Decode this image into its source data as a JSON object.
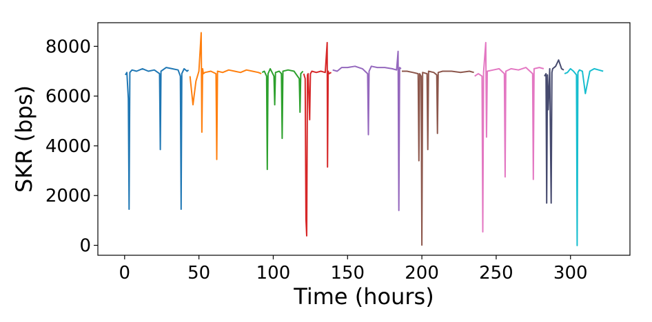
{
  "chart_data": {
    "type": "line",
    "title": "",
    "xlabel": "Time (hours)",
    "ylabel": "SKR (bps)",
    "xlim": [
      -18,
      340
    ],
    "ylim": [
      -400,
      8950
    ],
    "xticks": [
      0,
      50,
      100,
      150,
      200,
      250,
      300
    ],
    "yticks": [
      0,
      2000,
      4000,
      6000,
      8000
    ],
    "grid": false,
    "legend": "none",
    "series": [
      {
        "color": "#1f77b4",
        "x": [
          0.5,
          1.5,
          2.5,
          3,
          3.5,
          5,
          8,
          12,
          16,
          20,
          23.5,
          24,
          24.5,
          28,
          32,
          36,
          37.5,
          38,
          38.5,
          40,
          42,
          43
        ],
        "y": [
          6850,
          6950,
          5900,
          1450,
          6950,
          7050,
          7000,
          7100,
          7000,
          7050,
          6900,
          3850,
          7000,
          7150,
          7100,
          7050,
          6800,
          1450,
          6900,
          7100,
          7000,
          7050
        ]
      },
      {
        "color": "#ff7f0e",
        "x": [
          44,
          46,
          48,
          50,
          51.5,
          52,
          52.5,
          53,
          54,
          58,
          61.5,
          62,
          62.5,
          66,
          70,
          74,
          78,
          82,
          86,
          90,
          92
        ],
        "y": [
          6800,
          5650,
          6600,
          7000,
          8550,
          4550,
          7100,
          6900,
          6950,
          7000,
          6900,
          3450,
          7000,
          6950,
          7050,
          7000,
          6950,
          7050,
          7000,
          6950,
          6900
        ]
      },
      {
        "color": "#2ca02c",
        "x": [
          92.5,
          94,
          95.5,
          96,
          96.5,
          98,
          100.5,
          101,
          101.5,
          104,
          105.5,
          106,
          106.5,
          110,
          114,
          117.5,
          118,
          118.5,
          120
        ],
        "y": [
          6950,
          7000,
          6800,
          3050,
          6900,
          7100,
          6800,
          5650,
          6950,
          7000,
          6900,
          4300,
          7000,
          7050,
          7000,
          6700,
          5350,
          6900,
          7000
        ]
      },
      {
        "color": "#d62728",
        "x": [
          120.5,
          121.5,
          122,
          122.5,
          123,
          123.5,
          124.5,
          125,
          126,
          129,
          132,
          135,
          136.3,
          136.5,
          137,
          137.5,
          139
        ],
        "y": [
          6900,
          6700,
          1050,
          380,
          6850,
          6900,
          5050,
          6900,
          7000,
          6950,
          7000,
          6950,
          8150,
          3150,
          7000,
          6900,
          6950
        ]
      },
      {
        "color": "#9467bd",
        "x": [
          140,
          143,
          146,
          150,
          155,
          160,
          163.5,
          164,
          164.5,
          166,
          170,
          175,
          180,
          183,
          184,
          184.5,
          185,
          186
        ],
        "y": [
          7050,
          7000,
          7150,
          7150,
          7200,
          7100,
          6900,
          4450,
          7000,
          7200,
          7150,
          7150,
          7100,
          7050,
          7800,
          1400,
          7150,
          7100
        ]
      },
      {
        "color": "#8c564b",
        "x": [
          186.5,
          190,
          194,
          197.5,
          198,
          198.5,
          199.5,
          200,
          200.5,
          203.5,
          204,
          204.5,
          208,
          210,
          210.5,
          211,
          214,
          220,
          226,
          232,
          235
        ],
        "y": [
          7000,
          7000,
          6950,
          6900,
          3400,
          6900,
          6800,
          10,
          6950,
          6900,
          3850,
          7000,
          6950,
          6850,
          4500,
          6950,
          7000,
          7000,
          6950,
          7000,
          6950
        ]
      },
      {
        "color": "#e377c2",
        "x": [
          235.5,
          238,
          240.5,
          241,
          241.5,
          243,
          243.5,
          244,
          248,
          252,
          255.5,
          256,
          256.5,
          260,
          265,
          270,
          274.5,
          275,
          275.5,
          279,
          282
        ],
        "y": [
          6800,
          6900,
          6800,
          540,
          6950,
          8150,
          4350,
          7000,
          7050,
          7100,
          6900,
          2750,
          7000,
          7100,
          7050,
          7150,
          6900,
          2650,
          7100,
          7150,
          7100
        ]
      },
      {
        "color": "#464a6e",
        "x": [
          282.5,
          283.5,
          284,
          284.5,
          285,
          286,
          287,
          287.5,
          288,
          290,
          292,
          294,
          295.5
        ],
        "y": [
          6800,
          6900,
          1700,
          6850,
          5450,
          7100,
          1700,
          6950,
          7100,
          7200,
          7450,
          7100,
          7050
        ]
      },
      {
        "color": "#17becf",
        "x": [
          296,
          298,
          300,
          302,
          304,
          304.5,
          305,
          306,
          308,
          310,
          313,
          316,
          319,
          322
        ],
        "y": [
          6900,
          6950,
          7100,
          7000,
          6850,
          -10,
          6950,
          7050,
          7000,
          6100,
          7000,
          7100,
          7050,
          7000
        ]
      }
    ]
  }
}
